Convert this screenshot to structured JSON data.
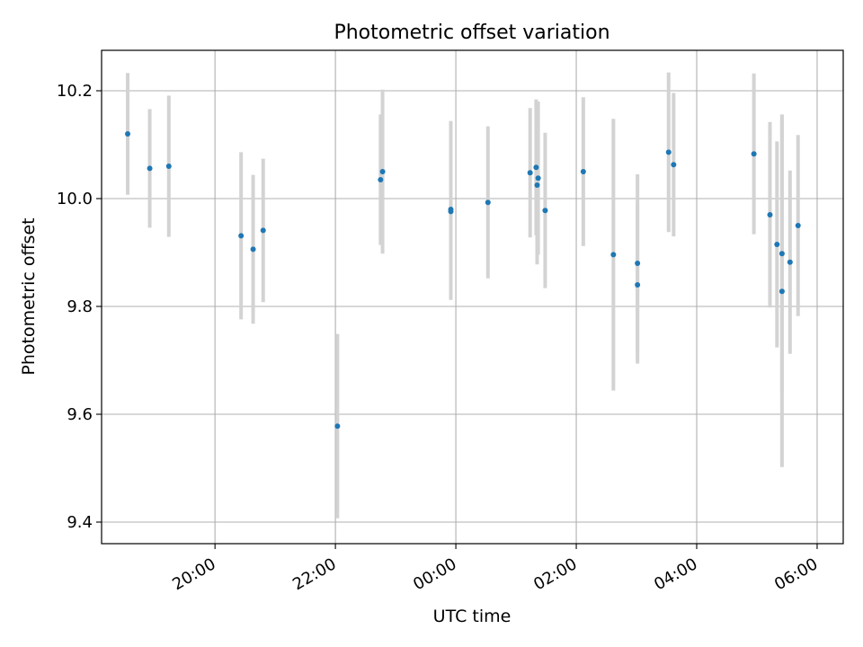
{
  "chart_data": {
    "type": "scatter",
    "title": "Photometric offset variation",
    "xlabel": "UTC time",
    "ylabel": "Photometric offset",
    "x_axis_kind": "time (HH:MM, UTC)",
    "x_ticks": [
      "20:00",
      "22:00",
      "00:00",
      "02:00",
      "04:00",
      "06:00"
    ],
    "y_ticks": [
      "9.4",
      "9.6",
      "9.8",
      "10.0",
      "10.2"
    ],
    "ylim": [
      9.36,
      10.275
    ],
    "xlim": [
      "18:07",
      "06:26"
    ],
    "grid": true,
    "colors": {
      "marker": "#1f77b4",
      "errorbar": "#d3d3d3",
      "grid": "#b0b0b0",
      "axes": "#000000"
    },
    "series": [
      {
        "points": [
          {
            "x": "18:33",
            "y": 10.12,
            "err": 0.113
          },
          {
            "x": "18:55",
            "y": 10.056,
            "err": 0.11
          },
          {
            "x": "19:14",
            "y": 10.06,
            "err": 0.131
          },
          {
            "x": "20:26",
            "y": 9.931,
            "err": 0.155
          },
          {
            "x": "20:38",
            "y": 9.906,
            "err": 0.138
          },
          {
            "x": "20:48",
            "y": 9.941,
            "err": 0.133
          },
          {
            "x": "22:02",
            "y": 9.578,
            "err": 0.171
          },
          {
            "x": "22:45",
            "y": 10.035,
            "err": 0.121
          },
          {
            "x": "22:47",
            "y": 10.05,
            "err": 0.152
          },
          {
            "x": "23:55",
            "y": 9.98,
            "err": 0.164
          },
          {
            "x": "23:55",
            "y": 9.976,
            "err": 0.164
          },
          {
            "x": "00:32",
            "y": 9.993,
            "err": 0.141
          },
          {
            "x": "01:14",
            "y": 10.048,
            "err": 0.12
          },
          {
            "x": "01:20",
            "y": 10.058,
            "err": 0.126
          },
          {
            "x": "01:21",
            "y": 10.025,
            "err": 0.147
          },
          {
            "x": "01:22",
            "y": 10.038,
            "err": 0.142
          },
          {
            "x": "01:29",
            "y": 9.978,
            "err": 0.144
          },
          {
            "x": "02:07",
            "y": 10.05,
            "err": 0.138
          },
          {
            "x": "02:37",
            "y": 9.896,
            "err": 0.252
          },
          {
            "x": "03:01",
            "y": 9.88,
            "err": 0.165
          },
          {
            "x": "03:01",
            "y": 9.84,
            "err": 0.146
          },
          {
            "x": "03:32",
            "y": 10.086,
            "err": 0.148
          },
          {
            "x": "03:37",
            "y": 10.063,
            "err": 0.133
          },
          {
            "x": "04:57",
            "y": 10.083,
            "err": 0.149
          },
          {
            "x": "05:13",
            "y": 9.97,
            "err": 0.172
          },
          {
            "x": "05:20",
            "y": 9.915,
            "err": 0.191
          },
          {
            "x": "05:25",
            "y": 9.898,
            "err": 0.258
          },
          {
            "x": "05:25",
            "y": 9.828,
            "err": 0.326
          },
          {
            "x": "05:33",
            "y": 9.882,
            "err": 0.17
          },
          {
            "x": "05:41",
            "y": 9.95,
            "err": 0.168
          }
        ]
      }
    ]
  }
}
